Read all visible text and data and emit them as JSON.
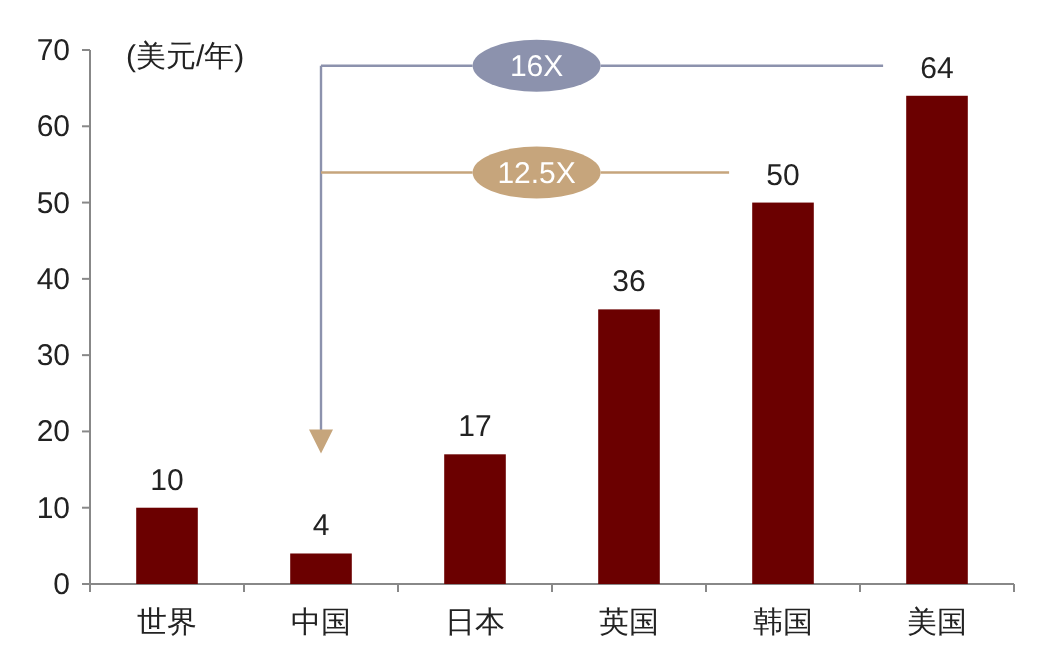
{
  "chart_data": {
    "type": "bar",
    "ylabel": "(美元/年)",
    "categories": [
      "世界",
      "中国",
      "日本",
      "英国",
      "韩国",
      "美国"
    ],
    "values": [
      10,
      4,
      17,
      36,
      50,
      64
    ],
    "color": "#6b0000",
    "ylim": [
      0,
      70
    ],
    "yticks": [
      0,
      10,
      20,
      30,
      40,
      50,
      60,
      70
    ],
    "data_labels": true,
    "annotations": [
      "16X",
      "12.5X"
    ]
  }
}
